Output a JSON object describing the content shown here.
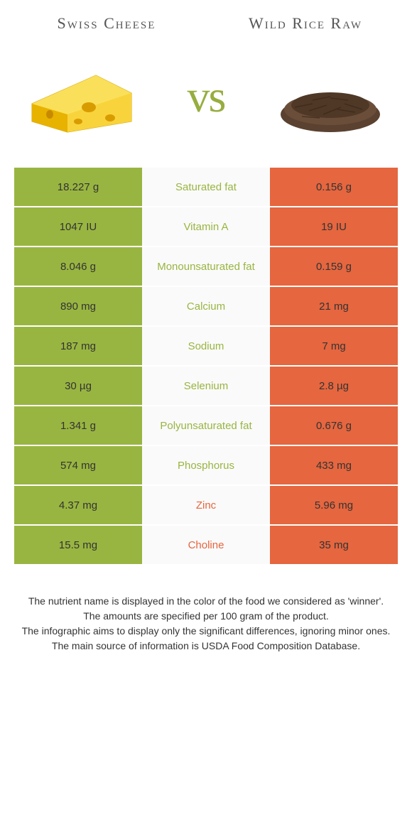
{
  "colors": {
    "left_bg": "#99b541",
    "right_bg": "#e5663f",
    "mid_bg": "#fafafa",
    "left_text": "#99b541",
    "right_text": "#e5663f"
  },
  "header": {
    "left_title": "Swiss Cheese",
    "right_title": "Wild Rice Raw",
    "vs": "vs"
  },
  "rows": [
    {
      "left": "18.227 g",
      "name": "Saturated fat",
      "right": "0.156 g",
      "winner": "left"
    },
    {
      "left": "1047 IU",
      "name": "Vitamin A",
      "right": "19 IU",
      "winner": "left"
    },
    {
      "left": "8.046 g",
      "name": "Monounsaturated fat",
      "right": "0.159 g",
      "winner": "left"
    },
    {
      "left": "890 mg",
      "name": "Calcium",
      "right": "21 mg",
      "winner": "left"
    },
    {
      "left": "187 mg",
      "name": "Sodium",
      "right": "7 mg",
      "winner": "left"
    },
    {
      "left": "30 µg",
      "name": "Selenium",
      "right": "2.8 µg",
      "winner": "left"
    },
    {
      "left": "1.341 g",
      "name": "Polyunsaturated fat",
      "right": "0.676 g",
      "winner": "left"
    },
    {
      "left": "574 mg",
      "name": "Phosphorus",
      "right": "433 mg",
      "winner": "left"
    },
    {
      "left": "4.37 mg",
      "name": "Zinc",
      "right": "5.96 mg",
      "winner": "right"
    },
    {
      "left": "15.5 mg",
      "name": "Choline",
      "right": "35 mg",
      "winner": "right"
    }
  ],
  "footer": {
    "line1": "The nutrient name is displayed in the color of the food we considered as 'winner'.",
    "line2": "The amounts are specified per 100 gram of the product.",
    "line3": "The infographic aims to display only the significant differences, ignoring minor ones.",
    "line4": "The main source of information is USDA Food Composition Database."
  }
}
